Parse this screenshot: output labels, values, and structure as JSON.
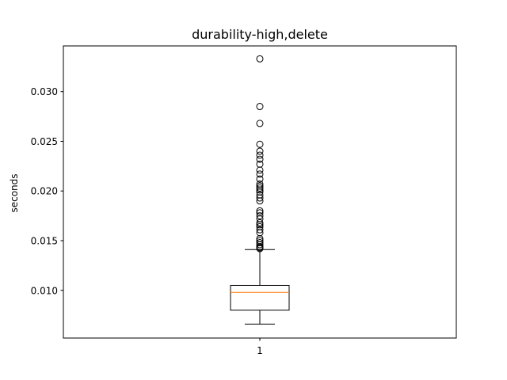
{
  "chart_data": {
    "type": "box",
    "title": "durability-high,delete",
    "xlabel": "",
    "ylabel": "seconds",
    "categories": [
      "1"
    ],
    "ylim": [
      0.0052,
      0.0346
    ],
    "yticks": [
      0.01,
      0.015,
      0.02,
      0.025,
      0.03
    ],
    "ytick_labels": [
      "0.010",
      "0.015",
      "0.020",
      "0.025",
      "0.030"
    ],
    "grid": false,
    "boxes": [
      {
        "label": "1",
        "whisker_low": 0.0066,
        "q1": 0.008,
        "median": 0.0098,
        "q3": 0.0105,
        "whisker_high": 0.0141,
        "outliers": [
          0.0142,
          0.0143,
          0.0144,
          0.0146,
          0.0148,
          0.015,
          0.0152,
          0.0158,
          0.0161,
          0.0164,
          0.0166,
          0.0168,
          0.0172,
          0.0175,
          0.0178,
          0.018,
          0.019,
          0.0193,
          0.0196,
          0.0199,
          0.0201,
          0.0203,
          0.0205,
          0.0207,
          0.0212,
          0.0217,
          0.0221,
          0.0227,
          0.0232,
          0.0236,
          0.024,
          0.0247,
          0.0268,
          0.0285,
          0.0333
        ]
      }
    ],
    "colors": {
      "box": "#000000",
      "median": "#ff7f0e",
      "outlier": "#000000",
      "background": "#ffffff"
    }
  }
}
